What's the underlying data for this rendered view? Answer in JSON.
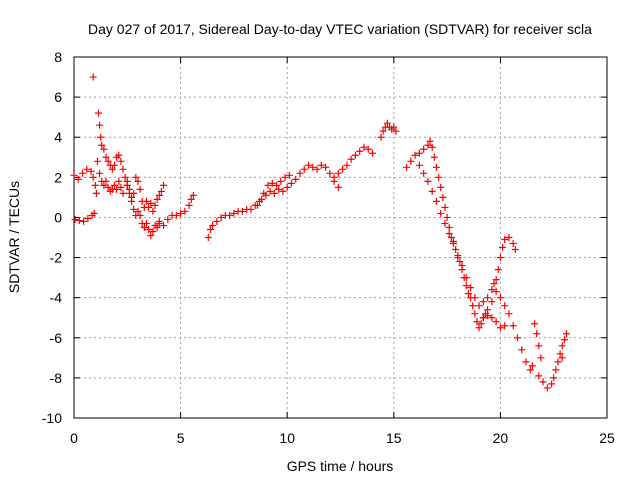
{
  "chart_data": {
    "type": "scatter",
    "title": "Day 027 of 2017, Sidereal Day-to-day VTEC variation (SDTVAR) for receiver scla",
    "xlabel": "GPS time / hours",
    "ylabel": "SDTVAR / TECUs",
    "xlim": [
      0,
      25
    ],
    "ylim": [
      -10,
      8
    ],
    "xticks": [
      "0",
      "5",
      "10",
      "15",
      "20",
      "25"
    ],
    "yticks": [
      "-10",
      "-8",
      "-6",
      "-4",
      "-2",
      "0",
      "2",
      "4",
      "6",
      "8"
    ],
    "grid": true,
    "marker": "+",
    "series": [
      {
        "color": "#ff0000",
        "points": [
          [
            0.0,
            2.1
          ],
          [
            0.2,
            1.9
          ],
          [
            0.4,
            2.2
          ],
          [
            0.6,
            2.4
          ],
          [
            0.8,
            2.3
          ],
          [
            0.9,
            2.0
          ],
          [
            1.0,
            1.6
          ],
          [
            1.05,
            1.2
          ],
          [
            0.05,
            -0.1
          ],
          [
            0.25,
            -0.15
          ],
          [
            0.45,
            -0.2
          ],
          [
            0.65,
            -0.05
          ],
          [
            0.85,
            0.1
          ],
          [
            0.95,
            0.2
          ],
          [
            0.9,
            7.0
          ],
          [
            1.15,
            5.2
          ],
          [
            1.2,
            4.6
          ],
          [
            1.25,
            4.0
          ],
          [
            1.3,
            3.6
          ],
          [
            1.4,
            3.4
          ],
          [
            1.5,
            3.0
          ],
          [
            1.6,
            2.8
          ],
          [
            1.7,
            2.6
          ],
          [
            1.8,
            2.4
          ],
          [
            1.9,
            2.6
          ],
          [
            2.0,
            3.0
          ],
          [
            2.1,
            3.1
          ],
          [
            2.2,
            2.8
          ],
          [
            2.3,
            2.4
          ],
          [
            2.4,
            2.0
          ],
          [
            2.5,
            1.6
          ],
          [
            1.1,
            2.8
          ],
          [
            1.2,
            2.2
          ],
          [
            1.3,
            1.8
          ],
          [
            1.4,
            1.6
          ],
          [
            1.5,
            1.8
          ],
          [
            1.6,
            1.5
          ],
          [
            1.7,
            1.3
          ],
          [
            1.8,
            1.4
          ],
          [
            1.9,
            1.6
          ],
          [
            2.0,
            1.4
          ],
          [
            2.1,
            1.8
          ],
          [
            2.2,
            1.5
          ],
          [
            2.3,
            1.2
          ],
          [
            2.5,
            1.6
          ],
          [
            2.6,
            1.2
          ],
          [
            2.7,
            0.8
          ],
          [
            2.8,
            0.4
          ],
          [
            2.9,
            0.1
          ],
          [
            3.0,
            0.3
          ],
          [
            3.1,
            0.1
          ],
          [
            3.2,
            -0.3
          ],
          [
            3.3,
            -0.5
          ],
          [
            3.4,
            -0.3
          ],
          [
            3.5,
            -0.6
          ],
          [
            3.6,
            -0.9
          ],
          [
            3.7,
            -0.7
          ],
          [
            3.8,
            -0.4
          ],
          [
            3.9,
            -0.5
          ],
          [
            4.0,
            -0.3
          ],
          [
            2.5,
            1.8
          ],
          [
            2.6,
            1.4
          ],
          [
            2.7,
            1.0
          ],
          [
            2.8,
            1.2
          ],
          [
            2.9,
            2.0
          ],
          [
            3.0,
            1.8
          ],
          [
            3.1,
            1.4
          ],
          [
            3.2,
            0.8
          ],
          [
            3.3,
            0.5
          ],
          [
            3.4,
            0.8
          ],
          [
            3.5,
            0.5
          ],
          [
            3.6,
            0.7
          ],
          [
            3.7,
            0.3
          ],
          [
            3.8,
            0.6
          ],
          [
            3.9,
            0.9
          ],
          [
            4.0,
            1.1
          ],
          [
            4.1,
            1.3
          ],
          [
            4.2,
            1.6
          ],
          [
            4.0,
            -0.2
          ],
          [
            4.2,
            -0.4
          ],
          [
            4.4,
            -0.1
          ],
          [
            4.6,
            0.1
          ],
          [
            4.8,
            0.1
          ],
          [
            5.0,
            0.2
          ],
          [
            5.2,
            0.3
          ],
          [
            5.4,
            0.6
          ],
          [
            5.5,
            0.9
          ],
          [
            5.6,
            1.1
          ],
          [
            6.3,
            -1.0
          ],
          [
            6.4,
            -0.6
          ],
          [
            6.5,
            -0.4
          ],
          [
            6.7,
            -0.2
          ],
          [
            6.9,
            0.0
          ],
          [
            7.1,
            0.1
          ],
          [
            7.3,
            0.1
          ],
          [
            7.5,
            0.2
          ],
          [
            7.7,
            0.3
          ],
          [
            7.9,
            0.3
          ],
          [
            8.1,
            0.4
          ],
          [
            8.3,
            0.4
          ],
          [
            8.5,
            0.6
          ],
          [
            8.7,
            0.8
          ],
          [
            8.9,
            1.2
          ],
          [
            9.1,
            1.6
          ],
          [
            9.3,
            1.7
          ],
          [
            9.5,
            1.6
          ],
          [
            9.7,
            1.8
          ],
          [
            9.9,
            2.0
          ],
          [
            10.1,
            2.1
          ],
          [
            8.6,
            0.6
          ],
          [
            8.8,
            0.9
          ],
          [
            9.0,
            1.1
          ],
          [
            9.2,
            1.3
          ],
          [
            9.4,
            1.2
          ],
          [
            9.6,
            1.4
          ],
          [
            9.8,
            1.3
          ],
          [
            10.0,
            1.5
          ],
          [
            10.2,
            1.7
          ],
          [
            10.4,
            1.9
          ],
          [
            10.6,
            2.2
          ],
          [
            10.8,
            2.4
          ],
          [
            11.0,
            2.6
          ],
          [
            11.2,
            2.5
          ],
          [
            11.4,
            2.4
          ],
          [
            11.6,
            2.6
          ],
          [
            11.8,
            2.5
          ],
          [
            12.0,
            2.2
          ],
          [
            12.2,
            1.8
          ],
          [
            12.4,
            1.5
          ],
          [
            12.2,
            2.0
          ],
          [
            12.4,
            2.2
          ],
          [
            12.6,
            2.4
          ],
          [
            12.8,
            2.6
          ],
          [
            13.0,
            2.9
          ],
          [
            13.2,
            3.1
          ],
          [
            13.4,
            3.3
          ],
          [
            13.6,
            3.5
          ],
          [
            13.8,
            3.4
          ],
          [
            14.0,
            3.2
          ],
          [
            14.4,
            4.0
          ],
          [
            14.5,
            4.3
          ],
          [
            14.6,
            4.5
          ],
          [
            14.7,
            4.7
          ],
          [
            14.8,
            4.5
          ],
          [
            14.9,
            4.4
          ],
          [
            15.0,
            4.5
          ],
          [
            15.1,
            4.3
          ],
          [
            15.6,
            2.5
          ],
          [
            15.8,
            2.8
          ],
          [
            16.0,
            3.1
          ],
          [
            16.2,
            3.2
          ],
          [
            16.4,
            3.4
          ],
          [
            16.6,
            3.6
          ],
          [
            16.7,
            3.8
          ],
          [
            16.8,
            3.5
          ],
          [
            16.9,
            3.0
          ],
          [
            17.0,
            2.5
          ],
          [
            17.1,
            2.0
          ],
          [
            17.2,
            1.5
          ],
          [
            17.3,
            1.0
          ],
          [
            17.4,
            0.5
          ],
          [
            17.5,
            0.0
          ],
          [
            17.6,
            -0.5
          ],
          [
            17.7,
            -1.0
          ],
          [
            17.8,
            -1.2
          ],
          [
            17.9,
            -1.6
          ],
          [
            18.0,
            -2.0
          ],
          [
            18.1,
            -2.2
          ],
          [
            18.2,
            -2.6
          ],
          [
            18.3,
            -3.0
          ],
          [
            18.4,
            -3.4
          ],
          [
            18.5,
            -3.8
          ],
          [
            18.6,
            -4.0
          ],
          [
            18.7,
            -4.4
          ],
          [
            18.8,
            -4.8
          ],
          [
            18.9,
            -5.2
          ],
          [
            19.0,
            -5.5
          ],
          [
            19.1,
            -5.3
          ],
          [
            19.2,
            -5.0
          ],
          [
            19.3,
            -4.8
          ],
          [
            19.4,
            -4.9
          ],
          [
            19.6,
            -5.0
          ],
          [
            19.8,
            -5.2
          ],
          [
            20.0,
            -5.5
          ],
          [
            20.2,
            -5.4
          ],
          [
            16.2,
            2.6
          ],
          [
            16.4,
            2.2
          ],
          [
            16.6,
            1.8
          ],
          [
            16.8,
            1.3
          ],
          [
            17.0,
            0.8
          ],
          [
            17.2,
            0.2
          ],
          [
            17.4,
            -0.3
          ],
          [
            17.6,
            -0.8
          ],
          [
            17.8,
            -1.3
          ],
          [
            18.0,
            -1.9
          ],
          [
            18.2,
            -2.4
          ],
          [
            18.4,
            -3.0
          ],
          [
            18.6,
            -3.5
          ],
          [
            18.8,
            -4.0
          ],
          [
            19.0,
            -4.4
          ],
          [
            19.2,
            -4.2
          ],
          [
            19.4,
            -4.0
          ],
          [
            19.6,
            -3.6
          ],
          [
            19.7,
            -3.3
          ],
          [
            19.8,
            -3.1
          ],
          [
            19.9,
            -2.6
          ],
          [
            20.0,
            -2.0
          ],
          [
            20.1,
            -1.5
          ],
          [
            20.2,
            -1.1
          ],
          [
            20.4,
            -1.0
          ],
          [
            20.6,
            -1.3
          ],
          [
            20.7,
            -1.6
          ],
          [
            19.2,
            -5.0
          ],
          [
            19.4,
            -4.6
          ],
          [
            19.6,
            -4.2
          ],
          [
            19.8,
            -3.7
          ],
          [
            20.0,
            -4.0
          ],
          [
            20.2,
            -4.4
          ],
          [
            20.4,
            -4.8
          ],
          [
            20.6,
            -5.4
          ],
          [
            20.8,
            -6.0
          ],
          [
            21.0,
            -6.6
          ],
          [
            21.2,
            -7.2
          ],
          [
            21.4,
            -7.6
          ],
          [
            21.5,
            -7.4
          ],
          [
            21.8,
            -7.9
          ],
          [
            22.0,
            -8.2
          ],
          [
            22.2,
            -8.5
          ],
          [
            22.4,
            -8.3
          ],
          [
            22.5,
            -8.0
          ],
          [
            22.6,
            -7.6
          ],
          [
            22.7,
            -7.2
          ],
          [
            22.8,
            -6.8
          ],
          [
            22.9,
            -6.4
          ],
          [
            23.0,
            -6.1
          ],
          [
            23.1,
            -5.8
          ],
          [
            22.9,
            -7.0
          ],
          [
            21.6,
            -5.3
          ],
          [
            21.7,
            -5.8
          ],
          [
            21.8,
            -6.4
          ],
          [
            21.9,
            -7.0
          ]
        ]
      }
    ]
  }
}
